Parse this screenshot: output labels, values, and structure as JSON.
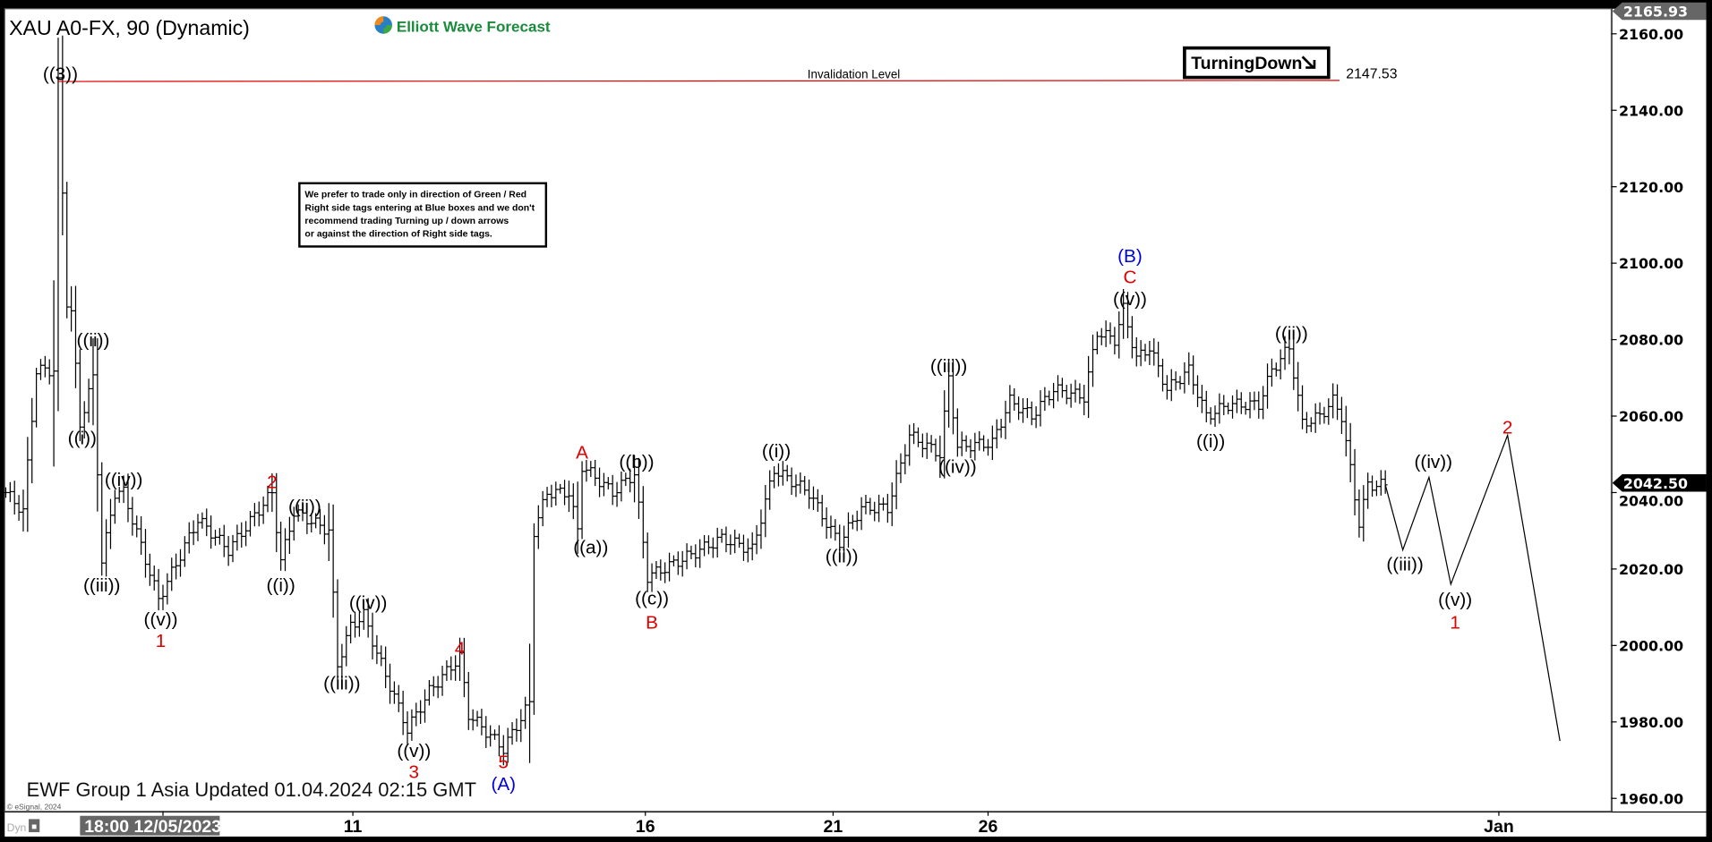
{
  "header": {
    "symbol_title": "XAU A0-FX, 90 (Dynamic)",
    "logo_text": "Elliott Wave Forecast",
    "logo_color": "#1a8a3c",
    "signal_tag": "TurningDown",
    "signal_icon": "arrow-down-right-icon"
  },
  "notice": {
    "lines": [
      "We prefer to trade only in direction of Green / Red",
      "Right side tags entering at Blue boxes and we don't",
      "recommend trading Turning up / down arrows",
      "or against the direction of Right side tags."
    ]
  },
  "footer": {
    "updated_text": "EWF Group 1 Asia Updated 01.04.2024 02:15 GMT",
    "copyright": "© eSignal, 2024",
    "dyn_label": "Dyn",
    "lock_icon": "lock-icon"
  },
  "chart_data": {
    "type": "ohlc-bar",
    "title": "XAU A0-FX, 90 (Dynamic)",
    "ylim": [
      1955,
      2168
    ],
    "y_ticks": [
      "2160.00",
      "2140.00",
      "2120.00",
      "2100.00",
      "2080.00",
      "2060.00",
      "2040.00",
      "2020.00",
      "2000.00",
      "1980.00",
      "1960.00"
    ],
    "y_tick_values": [
      2160,
      2140,
      2120,
      2100,
      2080,
      2060,
      2040,
      2020,
      2000,
      1980,
      1960
    ],
    "x_ticks": [
      {
        "label": "18:00 12/05/2023",
        "bar": 36,
        "highlight": true
      },
      {
        "label": "11",
        "bar": 79.5
      },
      {
        "label": "16",
        "bar": 146.5
      },
      {
        "label": "21",
        "bar": 189.5
      },
      {
        "label": "26",
        "bar": 225
      },
      {
        "label": "Jan",
        "bar": 342
      }
    ],
    "high_marker": {
      "label": "2165.93",
      "value": 2165.93
    },
    "last_price_marker": {
      "label": "2042.50",
      "value": 2042.5
    },
    "invalidation": {
      "label": "Invalidation Level",
      "value_label": "2147.53",
      "value": 2147.53,
      "from_bar": 12,
      "to_bar": 305.5,
      "color": "#e00000"
    },
    "price_path": [
      [
        0,
        2040
      ],
      [
        4,
        2035
      ],
      [
        7,
        2072
      ],
      [
        11,
        2072
      ],
      [
        12,
        2147
      ],
      [
        14,
        2090
      ],
      [
        15,
        2087
      ],
      [
        17,
        2058
      ],
      [
        20,
        2070
      ],
      [
        22,
        2022
      ],
      [
        25,
        2040
      ],
      [
        27,
        2040
      ],
      [
        35,
        2012
      ],
      [
        44,
        2033
      ],
      [
        51,
        2025
      ],
      [
        61,
        2040
      ],
      [
        63,
        2022
      ],
      [
        66,
        2035
      ],
      [
        74,
        2030
      ],
      [
        76,
        1995
      ],
      [
        79,
        2005
      ],
      [
        82,
        2008
      ],
      [
        85,
        1998
      ],
      [
        92,
        1978
      ],
      [
        97,
        1988
      ],
      [
        104,
        1997
      ],
      [
        106,
        1982
      ],
      [
        114,
        1973
      ],
      [
        120,
        1985
      ],
      [
        121,
        2030
      ],
      [
        124,
        2040
      ],
      [
        129,
        2040
      ],
      [
        131,
        2030
      ],
      [
        132,
        2047
      ],
      [
        139,
        2040
      ],
      [
        144,
        2045
      ],
      [
        147,
        2018
      ],
      [
        154,
        2022
      ],
      [
        164,
        2028
      ],
      [
        171,
        2025
      ],
      [
        176,
        2046
      ],
      [
        184,
        2040
      ],
      [
        189,
        2030
      ],
      [
        191,
        2027
      ],
      [
        196,
        2036
      ],
      [
        202,
        2036
      ],
      [
        207,
        2055
      ],
      [
        214,
        2050
      ],
      [
        216,
        2070
      ],
      [
        218,
        2052
      ],
      [
        226,
        2053
      ],
      [
        230,
        2064
      ],
      [
        235,
        2060
      ],
      [
        240,
        2067
      ],
      [
        247,
        2065
      ],
      [
        250,
        2082
      ],
      [
        254,
        2080
      ],
      [
        256,
        2088
      ],
      [
        259,
        2075
      ],
      [
        262,
        2078
      ],
      [
        266,
        2067
      ],
      [
        271,
        2072
      ],
      [
        275,
        2060
      ],
      [
        280,
        2063
      ],
      [
        287,
        2063
      ],
      [
        290,
        2072
      ],
      [
        294,
        2078
      ],
      [
        297,
        2058
      ],
      [
        301,
        2060
      ],
      [
        304,
        2064
      ],
      [
        306,
        2060
      ],
      [
        310,
        2032
      ],
      [
        312,
        2042
      ],
      [
        316,
        2042
      ]
    ],
    "projection": [
      [
        316,
        2042
      ],
      [
        320,
        2025
      ],
      [
        326,
        2044
      ],
      [
        331,
        2016
      ],
      [
        344,
        2055
      ],
      [
        356,
        1975
      ]
    ],
    "wave_labels": [
      {
        "text": "((3))",
        "bar": 12.5,
        "price": 2149.4,
        "color": "#000000"
      },
      {
        "text": "((ii))",
        "bar": 20,
        "price": 2079.8,
        "color": "#000000"
      },
      {
        "text": "((i))",
        "bar": 17.5,
        "price": 2054.2,
        "color": "#000000"
      },
      {
        "text": "((iv))",
        "bar": 27,
        "price": 2043.3,
        "color": "#000000"
      },
      {
        "text": "((iii))",
        "bar": 22,
        "price": 2015.6,
        "color": "#000000"
      },
      {
        "text": "((v))",
        "bar": 35.5,
        "price": 2006.8,
        "color": "#000000"
      },
      {
        "text": "1",
        "bar": 35.5,
        "price": 2001.1,
        "color": "#e00000"
      },
      {
        "text": "2",
        "bar": 61,
        "price": 2042.7,
        "color": "#e00000"
      },
      {
        "text": "((i))",
        "bar": 63,
        "price": 2015.6,
        "color": "#000000"
      },
      {
        "text": "((ii))",
        "bar": 68.5,
        "price": 2036.2,
        "color": "#000000"
      },
      {
        "text": "((iii))",
        "bar": 77,
        "price": 1990,
        "color": "#000000"
      },
      {
        "text": "((iv))",
        "bar": 83,
        "price": 2011.1,
        "color": "#000000"
      },
      {
        "text": "((v))",
        "bar": 93.5,
        "price": 1972.3,
        "color": "#000000"
      },
      {
        "text": "3",
        "bar": 93.5,
        "price": 1966.8,
        "color": "#e00000"
      },
      {
        "text": "4",
        "bar": 104,
        "price": 1999.1,
        "color": "#e00000"
      },
      {
        "text": "5",
        "bar": 114,
        "price": 1969.1,
        "color": "#e00000"
      },
      {
        "text": "(A)",
        "bar": 114,
        "price": 1964,
        "color": "#0000e0"
      },
      {
        "text": "A",
        "bar": 132,
        "price": 2050.4,
        "color": "#e00000"
      },
      {
        "text": "((b))",
        "bar": 144.5,
        "price": 2047.9,
        "color": "#000000"
      },
      {
        "text": "((a))",
        "bar": 134,
        "price": 2025.6,
        "color": "#000000"
      },
      {
        "text": "((c))",
        "bar": 148,
        "price": 2012.2,
        "color": "#000000"
      },
      {
        "text": "B",
        "bar": 148,
        "price": 2005.9,
        "color": "#e00000"
      },
      {
        "text": "((i))",
        "bar": 176.5,
        "price": 2050.7,
        "color": "#000000"
      },
      {
        "text": "((ii))",
        "bar": 191.5,
        "price": 2023.3,
        "color": "#000000"
      },
      {
        "text": "((iii))",
        "bar": 216,
        "price": 2073,
        "color": "#000000"
      },
      {
        "text": "((iv))",
        "bar": 218,
        "price": 2046.7,
        "color": "#000000"
      },
      {
        "text": "(B)",
        "bar": 257.5,
        "price": 2101,
        "color": "#0000e0"
      },
      {
        "text": "C",
        "bar": 257.5,
        "price": 2096.1,
        "color": "#e00000"
      },
      {
        "text": "((v))",
        "bar": 257.5,
        "price": 2091.5,
        "color": "#000000"
      },
      {
        "text": "((ii))",
        "bar": 294.5,
        "price": 2081.5,
        "color": "#000000"
      },
      {
        "text": "((i))",
        "bar": 276,
        "price": 2053.3,
        "color": "#000000"
      },
      {
        "text": "((iv))",
        "bar": 327,
        "price": 2047.9,
        "color": "#000000"
      },
      {
        "text": "((iii))",
        "bar": 320.5,
        "price": 2021.1,
        "color": "#000000"
      },
      {
        "text": "((v))",
        "bar": 332,
        "price": 2011.9,
        "color": "#000000"
      },
      {
        "text": "1",
        "bar": 332,
        "price": 2005.9,
        "color": "#e00000"
      },
      {
        "text": "2",
        "bar": 344,
        "price": 2057,
        "color": "#e00000"
      }
    ]
  }
}
